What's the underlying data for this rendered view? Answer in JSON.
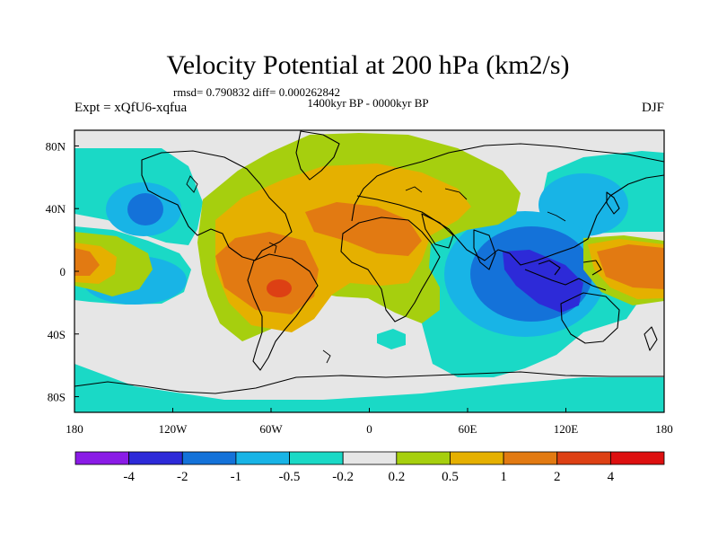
{
  "chart_data": {
    "type": "heatmap",
    "title": "Velocity Potential at 200 hPa (km2/s)",
    "stats": "rmsd= 0.790832 diff= 0.000262842",
    "period": "1400kyr BP - 0000kyr BP",
    "left_label": "Expt = xQfU6-xqfua",
    "right_label": "DJF",
    "xlim": [
      -180,
      180
    ],
    "ylim": [
      -90,
      90
    ],
    "x_ticks": [
      {
        "value": -180,
        "label": "180"
      },
      {
        "value": -120,
        "label": "120W"
      },
      {
        "value": -60,
        "label": "60W"
      },
      {
        "value": 0,
        "label": "0"
      },
      {
        "value": 60,
        "label": "60E"
      },
      {
        "value": 120,
        "label": "120E"
      },
      {
        "value": 180,
        "label": "180"
      }
    ],
    "y_ticks": [
      {
        "value": 80,
        "label": "80N"
      },
      {
        "value": 40,
        "label": "40N"
      },
      {
        "value": 0,
        "label": "0"
      },
      {
        "value": -40,
        "label": "40S"
      },
      {
        "value": -80,
        "label": "80S"
      }
    ],
    "colorbar": {
      "colors": [
        "#8a1be6",
        "#2d2ad8",
        "#1472d9",
        "#18b4e6",
        "#1ad9c6",
        "#e6e6e6",
        "#a6cf0e",
        "#e5b000",
        "#e27a12",
        "#dd4014",
        "#dd1010"
      ],
      "levels": [
        "-4",
        "-2",
        "-1",
        "-0.5",
        "-0.2",
        "0.2",
        "0.5",
        "1",
        "2",
        "4"
      ]
    },
    "regions": [
      {
        "name": "eastern-pacific-positive",
        "lon": -172,
        "lat": 2,
        "rx": 25,
        "ry": 20,
        "level": 8
      },
      {
        "name": "south-america-positive",
        "lon": -55,
        "lat": -10,
        "rx": 47,
        "ry": 42,
        "level": 8
      },
      {
        "name": "africa-positive",
        "lon": 25,
        "lat": 22,
        "rx": 60,
        "ry": 30,
        "level": 8
      },
      {
        "name": "north-atlantic-positive",
        "lon": -10,
        "lat": 45,
        "rx": 55,
        "ry": 40,
        "level": 7
      },
      {
        "name": "amazon-maximum",
        "lon": -60,
        "lat": -15,
        "rx": 9,
        "ry": 9,
        "level": 9
      },
      {
        "name": "west-pacific-positive",
        "lon": 165,
        "lat": 0,
        "rx": 32,
        "ry": 18,
        "level": 8
      },
      {
        "name": "indian-ocean-negative",
        "lon": 105,
        "lat": -15,
        "rx": 35,
        "ry": 30,
        "level": 1
      },
      {
        "name": "north-pacific-negative",
        "lon": -145,
        "lat": 35,
        "rx": 18,
        "ry": 15,
        "level": 3
      },
      {
        "name": "north-pacific-east-negative",
        "lon": 135,
        "lat": 38,
        "rx": 25,
        "ry": 18,
        "level": 3
      }
    ]
  }
}
